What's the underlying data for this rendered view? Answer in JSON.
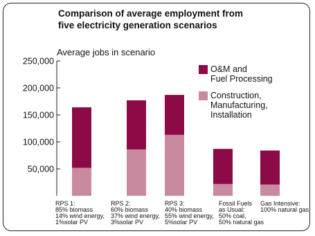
{
  "chart_data": {
    "type": "bar",
    "stacked": true,
    "title_lines": [
      "Comparison of average employment from",
      "five electricity generation scenarios"
    ],
    "ylabel": "Average jobs in scenario",
    "ylim": [
      0,
      250000
    ],
    "yticks": [
      {
        "value": 50000,
        "label": "50,000"
      },
      {
        "value": 100000,
        "label": "100,000"
      },
      {
        "value": 150000,
        "label": "150,000"
      },
      {
        "value": 200000,
        "label": "200,000"
      },
      {
        "value": 250000,
        "label": "250,000"
      }
    ],
    "categories": [
      [
        "RPS 1:",
        "85% biomass",
        "14% wind energy,",
        "1%solar PV"
      ],
      [
        "RPS 2:",
        "60% biomass",
        "37% wind energy,",
        "3%solar PV"
      ],
      [
        "RPS 3:",
        "40% biomass",
        "55% wind energy,",
        "5%solar PV"
      ],
      [
        "Fossil Fuels",
        "as Usual:",
        "50% coal,",
        "50% natural gas"
      ],
      [
        "Gas Intensive:",
        "100% natural gas"
      ]
    ],
    "series": [
      {
        "name_lines": [
          "Construction,",
          "Manufacturing,",
          "Installation"
        ],
        "color": "#c98aa0",
        "values": [
          52000,
          86000,
          113000,
          22000,
          21000
        ]
      },
      {
        "name_lines": [
          "O&M and",
          "Fuel Processing"
        ],
        "color": "#8c0a45",
        "values": [
          112000,
          91000,
          74000,
          65000,
          63000
        ]
      }
    ],
    "legend_position": "top-right",
    "grid": false
  }
}
